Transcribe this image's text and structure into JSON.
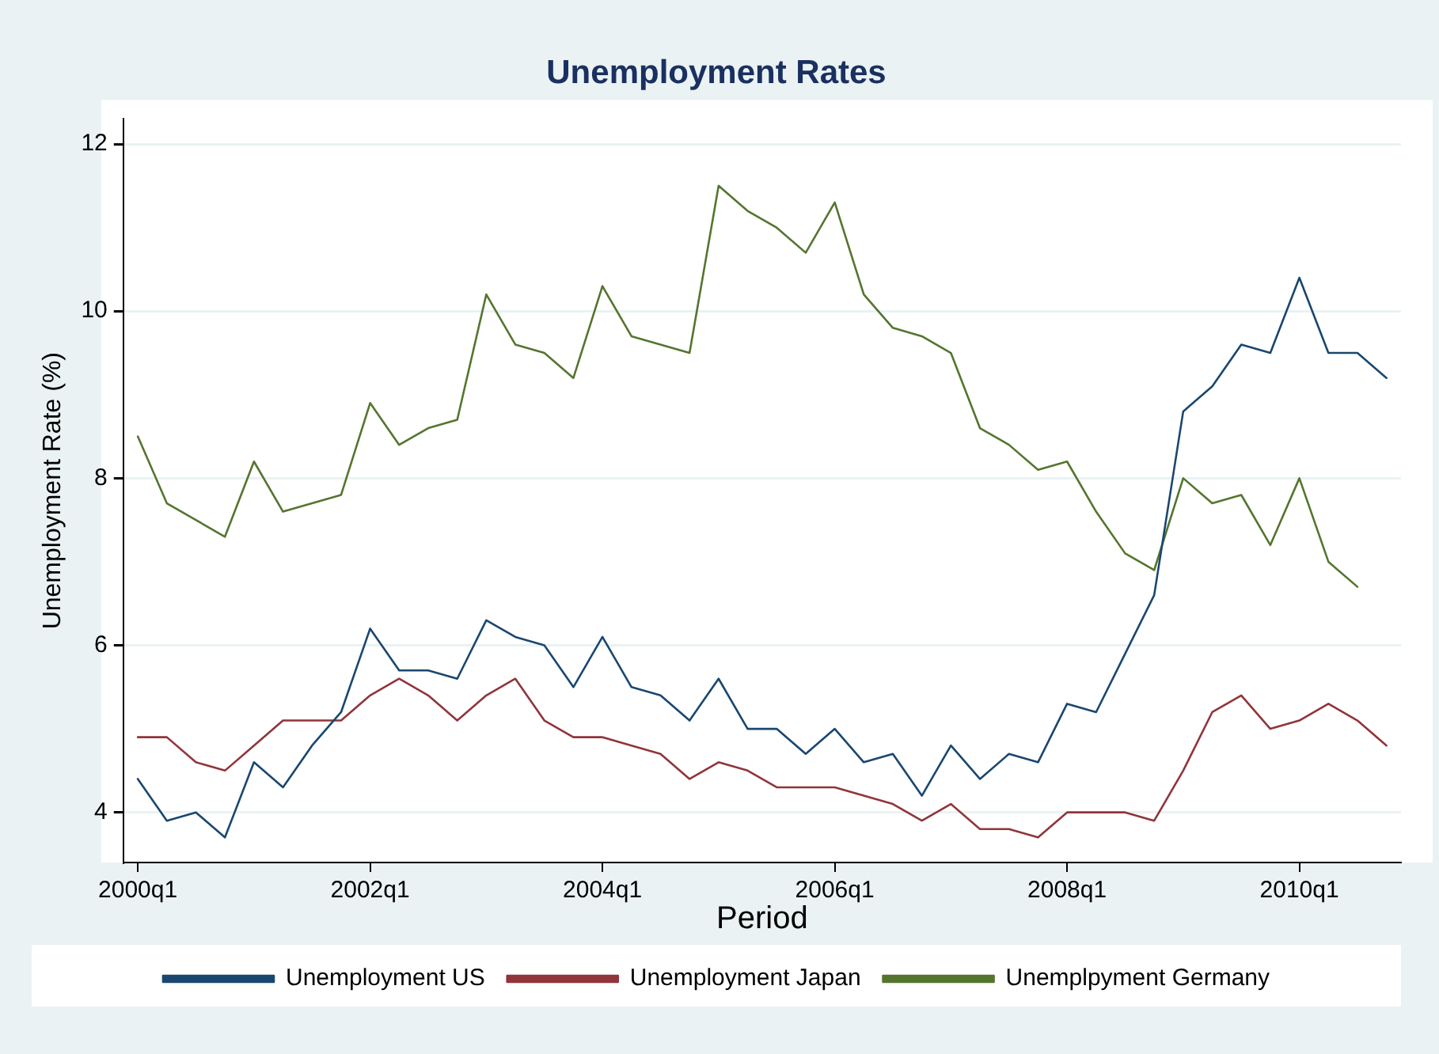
{
  "chart_data": {
    "type": "line",
    "title": "Unemployment Rates",
    "xlabel": "Period",
    "ylabel": "Unemployment Rate (%)",
    "categories": [
      "2000q1",
      null,
      null,
      null,
      null,
      null,
      null,
      null,
      "2002q1",
      null,
      null,
      null,
      null,
      null,
      null,
      null,
      "2004q1",
      null,
      null,
      null,
      null,
      null,
      null,
      null,
      "2006q1",
      null,
      null,
      null,
      null,
      null,
      null,
      null,
      "2008q1",
      null,
      null,
      null,
      null,
      null,
      null,
      null,
      "2010q1",
      null,
      null,
      null
    ],
    "series": [
      {
        "name": "Unemployment US",
        "color": "#1a476f",
        "values": [
          4.4,
          3.9,
          4.0,
          3.7,
          4.6,
          4.3,
          4.8,
          5.2,
          6.2,
          5.7,
          5.7,
          5.6,
          6.3,
          6.1,
          6.0,
          5.5,
          6.1,
          5.5,
          5.4,
          5.1,
          5.6,
          5.0,
          5.0,
          4.7,
          5.0,
          4.6,
          4.7,
          4.2,
          4.8,
          4.4,
          4.7,
          4.6,
          5.3,
          5.2,
          5.9,
          6.6,
          8.8,
          9.1,
          9.6,
          9.5,
          10.4,
          9.5,
          9.5,
          9.2
        ]
      },
      {
        "name": "Unemployment Japan",
        "color": "#90353b",
        "values": [
          4.9,
          4.9,
          4.6,
          4.5,
          4.8,
          5.1,
          5.1,
          5.1,
          5.4,
          5.6,
          5.4,
          5.1,
          5.4,
          5.6,
          5.1,
          4.9,
          4.9,
          4.8,
          4.7,
          4.4,
          4.6,
          4.5,
          4.3,
          4.3,
          4.3,
          4.2,
          4.1,
          3.9,
          4.1,
          3.8,
          3.8,
          3.7,
          4.0,
          4.0,
          4.0,
          3.9,
          4.5,
          5.2,
          5.4,
          5.0,
          5.1,
          5.3,
          5.1,
          4.8
        ]
      },
      {
        "name": "Unemplpyment Germany",
        "color": "#55752f",
        "values": [
          8.5,
          7.7,
          7.5,
          7.3,
          8.2,
          7.6,
          7.7,
          7.8,
          8.9,
          8.4,
          8.6,
          8.7,
          10.2,
          9.6,
          9.5,
          9.2,
          10.3,
          9.7,
          9.6,
          9.5,
          11.5,
          11.2,
          11.0,
          10.7,
          11.3,
          10.2,
          9.8,
          9.7,
          9.5,
          8.6,
          8.4,
          8.1,
          8.2,
          7.6,
          7.1,
          6.9,
          8.0,
          7.7,
          7.8,
          7.2,
          8.0,
          7.0,
          6.7,
          null
        ]
      }
    ],
    "ylim": [
      3.4,
      12.3
    ],
    "yticks": [
      4,
      6,
      8,
      10,
      12
    ],
    "grid": "y",
    "legend": "bottom",
    "marker": "none",
    "line_style": "solid"
  }
}
